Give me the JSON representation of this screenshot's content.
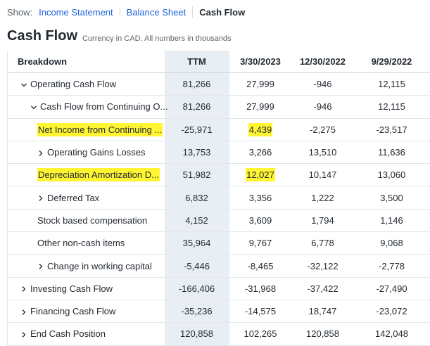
{
  "nav": {
    "label": "Show:",
    "tabs": [
      "Income Statement",
      "Balance Sheet",
      "Cash Flow"
    ]
  },
  "header": {
    "title": "Cash Flow",
    "note": "Currency in CAD. All numbers in thousands"
  },
  "table": {
    "columns": [
      "Breakdown",
      "TTM",
      "3/30/2023",
      "12/30/2022",
      "9/29/2022"
    ],
    "rows": [
      [
        "Operating Cash Flow",
        "81,266",
        "27,999",
        "-946",
        "12,115"
      ],
      [
        "Cash Flow from Continuing O...",
        "81,266",
        "27,999",
        "-946",
        "12,115"
      ],
      [
        "Net Income from Continuing ...",
        "-25,971",
        "4,439",
        "-2,275",
        "-23,517"
      ],
      [
        "Operating Gains Losses",
        "13,753",
        "3,266",
        "13,510",
        "11,636"
      ],
      [
        "Depreciation Amortization D...",
        "51,982",
        "12,027",
        "10,147",
        "13,060"
      ],
      [
        "Deferred Tax",
        "6,832",
        "3,356",
        "1,222",
        "3,500"
      ],
      [
        "Stock based compensation",
        "4,152",
        "3,609",
        "1,794",
        "1,146"
      ],
      [
        "Other non-cash items",
        "35,964",
        "9,767",
        "6,778",
        "9,068"
      ],
      [
        "Change in working capital",
        "-5,446",
        "-8,465",
        "-32,122",
        "-2,778"
      ],
      [
        "Investing Cash Flow",
        "-166,406",
        "-31,968",
        "-37,422",
        "-27,490"
      ],
      [
        "Financing Cash Flow",
        "-35,236",
        "-14,575",
        "18,747",
        "-23,072"
      ],
      [
        "End Cash Position",
        "120,858",
        "102,265",
        "120,858",
        "142,048"
      ]
    ]
  }
}
